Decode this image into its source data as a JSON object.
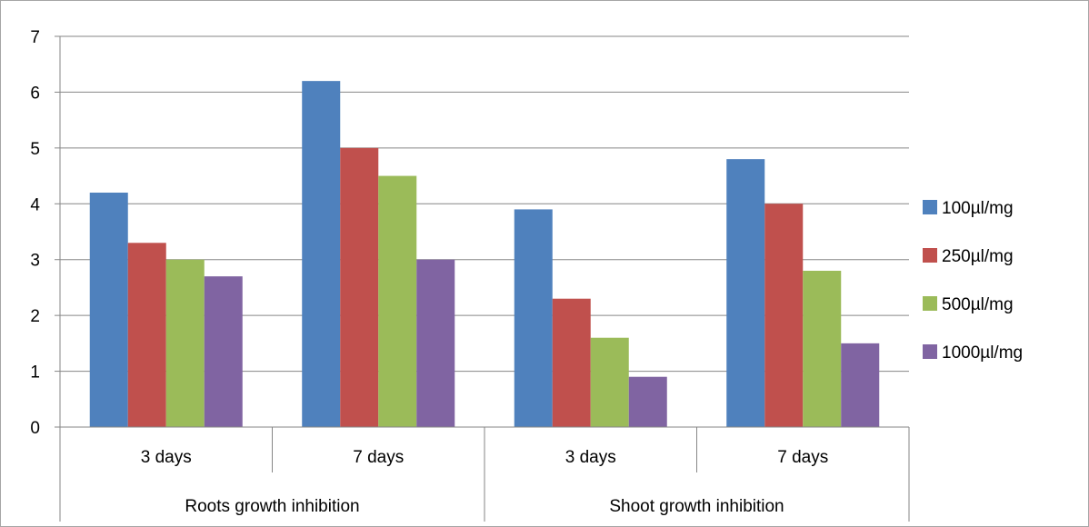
{
  "chart_data": {
    "type": "bar",
    "title": "",
    "xlabel": "",
    "ylabel": "",
    "ylim": [
      0,
      7
    ],
    "yticks": [
      "0",
      "1",
      "2",
      "3",
      "4",
      "5",
      "6",
      "7"
    ],
    "groups": [
      {
        "label": "Roots growth inhibition",
        "categories": [
          "3 days",
          "7 days"
        ]
      },
      {
        "label": "Shoot growth inhibition",
        "categories": [
          "3 days",
          "7 days"
        ]
      }
    ],
    "series": [
      {
        "name": "100µl/mg",
        "color": "#4f81bd",
        "values": [
          4.2,
          6.2,
          3.9,
          4.8
        ]
      },
      {
        "name": "250µl/mg",
        "color": "#c0504d",
        "values": [
          3.3,
          5.0,
          2.3,
          4.0
        ]
      },
      {
        "name": "500µl/mg",
        "color": "#9bbb59",
        "values": [
          3.0,
          4.5,
          1.6,
          2.8
        ]
      },
      {
        "name": "1000µl/mg",
        "color": "#8064a2",
        "values": [
          2.7,
          3.0,
          0.9,
          1.5
        ]
      }
    ],
    "grid": true,
    "legend": "right"
  }
}
